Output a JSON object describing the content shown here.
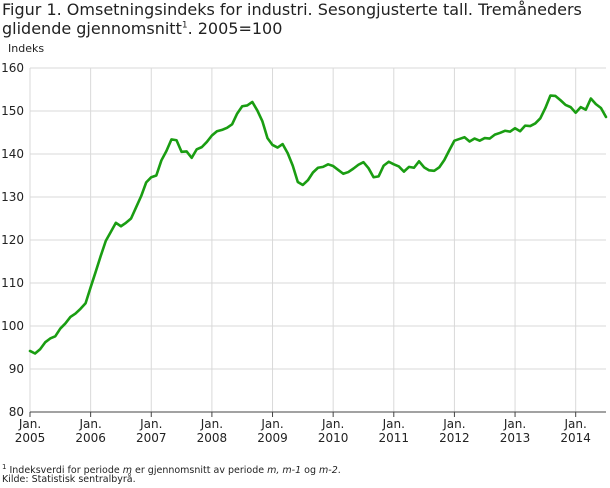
{
  "title": {
    "main": "Figur 1. Omsetningsindeks for industri. Sesongjusterte tall. Tremåneders glidende gjennomsnitt",
    "sup": "1",
    "tail": ". 2005=100"
  },
  "footnote": {
    "sup": "1",
    "pre": " Indeksverdi for periode ",
    "m": "m",
    "mid": " er gjennomsnitt av periode ",
    "m2": "m, m-1",
    "og": " og ",
    "m3": "m-2",
    "end": "."
  },
  "source": "Kilde: Statistisk sentralbyrå.",
  "chart_data": {
    "type": "line",
    "title": "Figur 1. Omsetningsindeks for industri. Sesongjusterte tall. Tremåneders glidende gjennomsnitt. 2005=100",
    "ylabel": "Indeks",
    "xlabel": "",
    "ylim": [
      80,
      160
    ],
    "yticks": [
      80,
      90,
      100,
      110,
      120,
      130,
      140,
      150,
      160
    ],
    "xticks": [
      {
        "line1": "Jan.",
        "line2": "2005"
      },
      {
        "line1": "Jan.",
        "line2": "2006"
      },
      {
        "line1": "Jan.",
        "line2": "2007"
      },
      {
        "line1": "Jan.",
        "line2": "2008"
      },
      {
        "line1": "Jan.",
        "line2": "2009"
      },
      {
        "line1": "Jan.",
        "line2": "2010"
      },
      {
        "line1": "Jan.",
        "line2": "2011"
      },
      {
        "line1": "Jan.",
        "line2": "2012"
      },
      {
        "line1": "Jan.",
        "line2": "2013"
      },
      {
        "line1": "Jan.",
        "line2": "2014"
      }
    ],
    "x_start": "2005-01",
    "x_end": "2014-07",
    "grid": true,
    "line_color": "#1a9d12",
    "series": [
      {
        "values": [
          94.2,
          93.6,
          94.6,
          96.2,
          97.1,
          97.6,
          99.4,
          100.6,
          102.1,
          102.9,
          104.0,
          105.3,
          109.0,
          112.6,
          116.3,
          119.8,
          121.9,
          124.0,
          123.2,
          124.0,
          125.0,
          127.6,
          130.2,
          133.4,
          134.6,
          135.0,
          138.5,
          140.7,
          143.4,
          143.2,
          140.5,
          140.6,
          139.1,
          141.1,
          141.6,
          142.8,
          144.3,
          145.3,
          145.6,
          146.1,
          146.9,
          149.4,
          151.1,
          151.3,
          152.1,
          150.1,
          147.6,
          143.7,
          142.1,
          141.5,
          142.3,
          140.2,
          137.3,
          133.5,
          132.8,
          133.9,
          135.7,
          136.8,
          137.0,
          137.6,
          137.2,
          136.3,
          135.4,
          135.8,
          136.6,
          137.5,
          138.1,
          136.7,
          134.6,
          134.8,
          137.3,
          138.2,
          137.6,
          137.1,
          135.9,
          137.0,
          136.8,
          138.3,
          136.9,
          136.2,
          136.1,
          136.9,
          138.6,
          140.9,
          143.1,
          143.5,
          143.9,
          142.9,
          143.6,
          143.1,
          143.7,
          143.6,
          144.5,
          144.9,
          145.4,
          145.2,
          146.0,
          145.3,
          146.6,
          146.5,
          147.1,
          148.3,
          150.7,
          153.6,
          153.5,
          152.5,
          151.4,
          150.9,
          149.6,
          150.9,
          150.3,
          152.9,
          151.6,
          150.7,
          148.6
        ]
      }
    ]
  }
}
